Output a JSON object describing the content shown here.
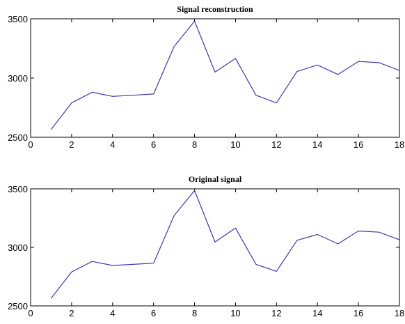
{
  "chart_data": [
    {
      "type": "line",
      "title": "Signal reconstruction",
      "xlabel": "",
      "ylabel": "",
      "xlim": [
        0,
        18
      ],
      "ylim": [
        2500,
        3500
      ],
      "xticks": [
        0,
        2,
        4,
        6,
        8,
        10,
        12,
        14,
        16,
        18
      ],
      "yticks": [
        2500,
        3000,
        3500
      ],
      "grid": false,
      "series": [
        {
          "x": [
            1,
            2,
            3,
            4,
            5,
            6,
            7,
            8,
            9,
            10,
            11,
            12,
            13,
            14,
            15,
            16,
            17,
            18
          ],
          "y": [
            2565,
            2790,
            2880,
            2845,
            2855,
            2865,
            3265,
            3480,
            3050,
            3165,
            2855,
            2790,
            3055,
            3110,
            3030,
            3140,
            3130,
            3065
          ],
          "color": "#3a3aa8"
        }
      ]
    },
    {
      "type": "line",
      "title": "Original signal",
      "xlabel": "",
      "ylabel": "",
      "xlim": [
        0,
        18
      ],
      "ylim": [
        2500,
        3500
      ],
      "xticks": [
        0,
        2,
        4,
        6,
        8,
        10,
        12,
        14,
        16,
        18
      ],
      "yticks": [
        2500,
        3000,
        3500
      ],
      "grid": false,
      "series": [
        {
          "x": [
            1,
            2,
            3,
            4,
            5,
            6,
            7,
            8,
            9,
            10,
            11,
            12,
            13,
            14,
            15,
            16,
            17,
            18
          ],
          "y": [
            2565,
            2790,
            2880,
            2845,
            2855,
            2865,
            3270,
            3485,
            3045,
            3165,
            2855,
            2795,
            3060,
            3110,
            3030,
            3140,
            3130,
            3065
          ],
          "color": "#3a3aa8"
        }
      ]
    }
  ]
}
